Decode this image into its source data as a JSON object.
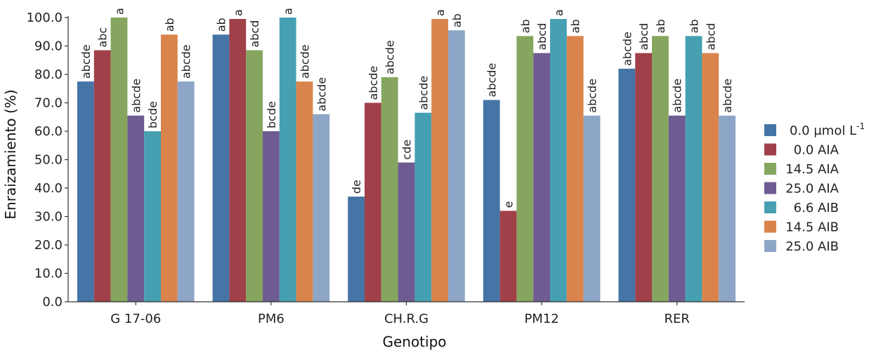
{
  "chart_data": {
    "type": "bar",
    "xlabel": "Genotipo",
    "ylabel": "Enraizamiento (%)",
    "ylim": [
      0,
      100
    ],
    "yticks": [
      "0.0",
      "10.0",
      "20.0",
      "30.0",
      "40.0",
      "50.0",
      "60.0",
      "70.0",
      "80.0",
      "90.0",
      "100.0"
    ],
    "categories": [
      "G 17-06",
      "PM6",
      "CH.R.G",
      "PM12",
      "RER"
    ],
    "legend_position": "right",
    "series": [
      {
        "name": "0.0 μmol L",
        "name_sup": "-1",
        "color": "#4574a6",
        "values": [
          77.5,
          94,
          37,
          71,
          82
        ],
        "labels": [
          "abcde",
          "ab",
          "de",
          "abcde",
          "abcde"
        ]
      },
      {
        "name": "0.0 AIA",
        "color": "#a0414a",
        "values": [
          88.5,
          99.5,
          70,
          32,
          87.5
        ],
        "labels": [
          "abc",
          "a",
          "abcde",
          "e",
          "abcd"
        ]
      },
      {
        "name": "14.5 AIA",
        "color": "#86a55f",
        "values": [
          100,
          88.5,
          79,
          93.5,
          93.5
        ],
        "labels": [
          "a",
          "abcd",
          "abcde",
          "ab",
          "ab"
        ]
      },
      {
        "name": "25.0 AIA",
        "color": "#6e5b91",
        "values": [
          65.5,
          60,
          49,
          87.5,
          65.5
        ],
        "labels": [
          "abcde",
          "bcde",
          "cde",
          "abcd",
          "abcde"
        ]
      },
      {
        "name": "6.6 AIB",
        "color": "#46a0b1",
        "values": [
          60,
          100,
          66.5,
          99.5,
          93.5
        ],
        "labels": [
          "bcde",
          "a",
          "abcde",
          "a",
          "ab"
        ]
      },
      {
        "name": "14.5 AIB",
        "color": "#da844d",
        "values": [
          94,
          77.5,
          99.5,
          93.5,
          87.5
        ],
        "labels": [
          "ab",
          "abcde",
          "a",
          "ab",
          "abcd"
        ]
      },
      {
        "name": "25.0 AIB",
        "color": "#8da6c8",
        "values": [
          77.5,
          66,
          95.5,
          65.5,
          65.5
        ],
        "labels": [
          "abcde",
          "abcde",
          "ab",
          "abcde",
          "abcde"
        ]
      }
    ]
  }
}
